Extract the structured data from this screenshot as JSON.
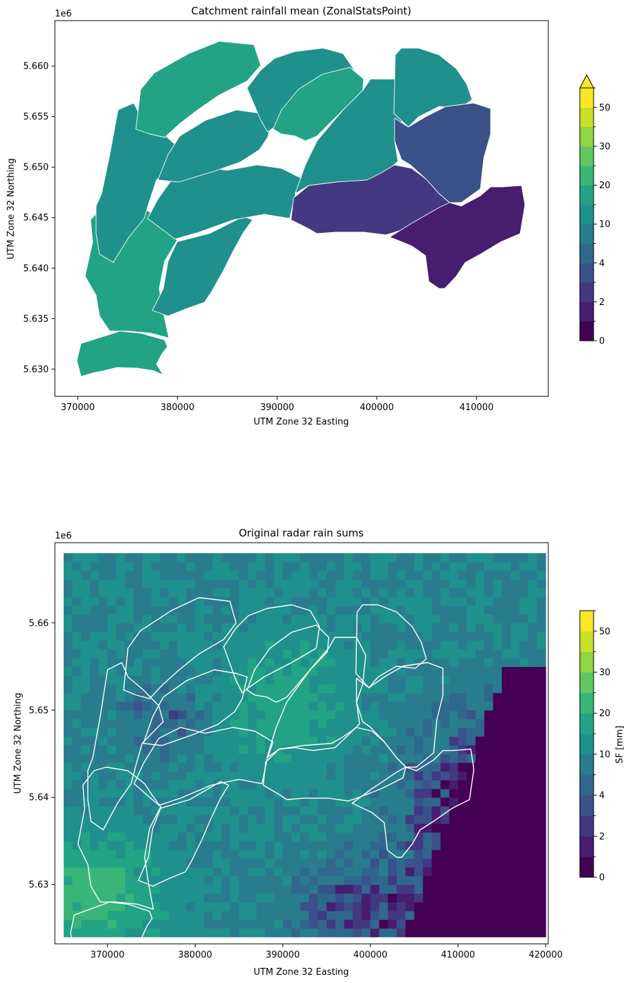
{
  "chart_data": [
    {
      "type": "choropleth",
      "title": "Catchment rainfall mean (ZonalStatsPoint)",
      "xlabel": "UTM Zone 32 Easting",
      "ylabel": "UTM Zone 32 Northing",
      "offset_label": "1e6",
      "xlim": [
        367700,
        417200
      ],
      "ylim": [
        5.6273,
        5.6645
      ],
      "x_ticks": [
        370000,
        380000,
        390000,
        400000,
        410000
      ],
      "x_tick_labels": [
        "370000",
        "380000",
        "390000",
        "400000",
        "410000"
      ],
      "y_ticks": [
        5.63,
        5.635,
        5.64,
        5.645,
        5.65,
        5.655,
        5.66
      ],
      "y_tick_labels": [
        "5.630",
        "5.635",
        "5.640",
        "5.645",
        "5.650",
        "5.655",
        "5.660"
      ],
      "catchment_values": [
        {
          "x": 375000,
          "y": 5.6315,
          "value": 18
        },
        {
          "x": 377000,
          "y": 5.6385,
          "value": 15
        },
        {
          "x": 374000,
          "y": 5.647,
          "value": 10
        },
        {
          "x": 382000,
          "y": 5.6395,
          "value": 11
        },
        {
          "x": 386000,
          "y": 5.647,
          "value": 14
        },
        {
          "x": 383000,
          "y": 5.654,
          "value": 14
        },
        {
          "x": 382000,
          "y": 5.659,
          "value": 15
        },
        {
          "x": 391000,
          "y": 5.658,
          "value": 14
        },
        {
          "x": 396000,
          "y": 5.6555,
          "value": 15
        },
        {
          "x": 398000,
          "y": 5.651,
          "value": 11
        },
        {
          "x": 404000,
          "y": 5.659,
          "value": 10
        },
        {
          "x": 409000,
          "y": 5.652,
          "value": 3
        },
        {
          "x": 398000,
          "y": 5.646,
          "value": 2
        },
        {
          "x": 409000,
          "y": 5.6425,
          "value": 1.3
        }
      ],
      "colorbar": {
        "levels": [
          0,
          1,
          2,
          3,
          4,
          6,
          10,
          15,
          20,
          25,
          30,
          40,
          50,
          55
        ],
        "tick_values": [
          0,
          2,
          4,
          10,
          20,
          30,
          50
        ],
        "tick_labels": [
          "0",
          "2",
          "4",
          "10",
          "20",
          "30",
          "50"
        ],
        "extend": "max",
        "label": ""
      }
    },
    {
      "type": "heatmap",
      "title": "Original radar rain sums",
      "xlabel": "UTM Zone 32 Easting",
      "ylabel": "UTM Zone 32 Northing",
      "offset_label": "1e6",
      "xlim": [
        364000,
        420300
      ],
      "ylim": [
        5.6232,
        5.6692
      ],
      "x_ticks": [
        370000,
        380000,
        390000,
        400000,
        410000,
        420000
      ],
      "x_tick_labels": [
        "370000",
        "380000",
        "390000",
        "400000",
        "410000",
        "420000"
      ],
      "y_ticks": [
        5.63,
        5.64,
        5.65,
        5.66
      ],
      "y_tick_labels": [
        "5.63",
        "5.64",
        "5.65",
        "5.66"
      ],
      "grid_extent": {
        "x": [
          365000,
          420000
        ],
        "y": [
          5.624,
          5.668
        ]
      },
      "grid_cell_km": 1,
      "value_range": [
        0,
        35
      ],
      "colorbar": {
        "levels": [
          0,
          1,
          2,
          3,
          4,
          6,
          10,
          15,
          20,
          25,
          30,
          40,
          50,
          55
        ],
        "tick_values": [
          0,
          2,
          4,
          10,
          20,
          30,
          50
        ],
        "tick_labels": [
          "0",
          "2",
          "4",
          "10",
          "20",
          "30",
          "50"
        ],
        "extend": "none",
        "label": "SF [mm]"
      }
    }
  ]
}
